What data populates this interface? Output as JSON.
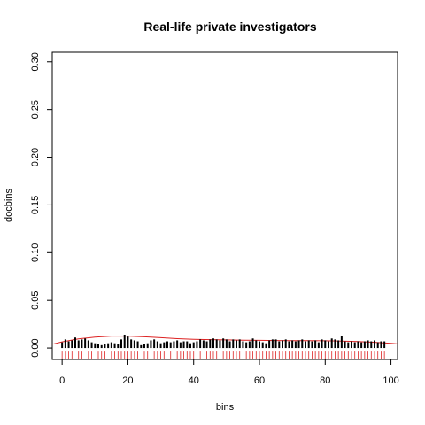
{
  "chart_data": {
    "type": "bar",
    "title": "Real-life private investigators",
    "xlabel": "bins",
    "ylabel": "docbins",
    "xlim": [
      -3,
      102
    ],
    "ylim": [
      -0.012,
      0.31
    ],
    "xticks": [
      "0",
      "20",
      "40",
      "60",
      "80",
      "100"
    ],
    "xtick_values": [
      0,
      20,
      40,
      60,
      80,
      100
    ],
    "yticks": [
      "0.00",
      "0.05",
      "0.10",
      "0.15",
      "0.20",
      "0.25",
      "0.30"
    ],
    "ytick_values": [
      0,
      0.05,
      0.1,
      0.15,
      0.2,
      0.25,
      0.3
    ],
    "bar_color": "#000000",
    "curve_color": "#dd2222",
    "rug_color": "#dd2222",
    "x": [
      0,
      1,
      2,
      3,
      4,
      5,
      6,
      7,
      8,
      9,
      10,
      11,
      12,
      13,
      14,
      15,
      16,
      17,
      18,
      19,
      20,
      21,
      22,
      23,
      24,
      25,
      26,
      27,
      28,
      29,
      30,
      31,
      32,
      33,
      34,
      35,
      36,
      37,
      38,
      39,
      40,
      41,
      42,
      43,
      44,
      45,
      46,
      47,
      48,
      49,
      50,
      51,
      52,
      53,
      54,
      55,
      56,
      57,
      58,
      59,
      60,
      61,
      62,
      63,
      64,
      65,
      66,
      67,
      68,
      69,
      70,
      71,
      72,
      73,
      74,
      75,
      76,
      77,
      78,
      79,
      80,
      81,
      82,
      83,
      84,
      85,
      86,
      87,
      88,
      89,
      90,
      91,
      92,
      93,
      94,
      95,
      96,
      97,
      98
    ],
    "values": [
      0.006,
      0.009,
      0.007,
      0.008,
      0.011,
      0.008,
      0.009,
      0.01,
      0.008,
      0.006,
      0.005,
      0.004,
      0.003,
      0.004,
      0.005,
      0.006,
      0.005,
      0.004,
      0.009,
      0.014,
      0.012,
      0.009,
      0.008,
      0.007,
      0.003,
      0.004,
      0.005,
      0.008,
      0.009,
      0.007,
      0.005,
      0.006,
      0.007,
      0.006,
      0.007,
      0.008,
      0.006,
      0.007,
      0.007,
      0.005,
      0.006,
      0.007,
      0.009,
      0.008,
      0.007,
      0.009,
      0.01,
      0.009,
      0.008,
      0.01,
      0.009,
      0.007,
      0.009,
      0.008,
      0.009,
      0.007,
      0.006,
      0.007,
      0.01,
      0.008,
      0.007,
      0.006,
      0.005,
      0.008,
      0.009,
      0.009,
      0.007,
      0.008,
      0.009,
      0.007,
      0.008,
      0.007,
      0.008,
      0.009,
      0.007,
      0.008,
      0.007,
      0.008,
      0.006,
      0.009,
      0.008,
      0.007,
      0.01,
      0.009,
      0.008,
      0.013,
      0.007,
      0.006,
      0.007,
      0.006,
      0.007,
      0.006,
      0.007,
      0.008,
      0.007,
      0.008,
      0.006,
      0.007,
      0.007
    ],
    "curve": {
      "x": [
        -5,
        0,
        5,
        10,
        15,
        20,
        25,
        30,
        35,
        40,
        45,
        50,
        55,
        60,
        65,
        70,
        75,
        80,
        85,
        90,
        95,
        100,
        103
      ],
      "y": [
        0.004,
        0.0065,
        0.0095,
        0.0115,
        0.0125,
        0.0125,
        0.0118,
        0.0108,
        0.0098,
        0.0092,
        0.0088,
        0.0085,
        0.0082,
        0.008,
        0.0079,
        0.0078,
        0.0077,
        0.0076,
        0.0073,
        0.0068,
        0.006,
        0.005,
        0.0043
      ]
    },
    "rug_x": [
      0,
      1,
      2,
      3,
      5,
      6,
      8,
      9,
      11,
      12,
      13,
      15,
      16,
      17,
      18,
      19,
      20,
      21,
      22,
      23,
      25,
      26,
      28,
      29,
      30,
      31,
      33,
      34,
      35,
      36,
      37,
      38,
      39,
      40,
      41,
      42,
      44,
      45,
      46,
      47,
      48,
      49,
      50,
      51,
      52,
      53,
      54,
      55,
      56,
      57,
      58,
      59,
      60,
      61,
      62,
      63,
      64,
      65,
      66,
      67,
      68,
      69,
      70,
      71,
      72,
      73,
      74,
      75,
      76,
      77,
      78,
      79,
      80,
      81,
      82,
      83,
      84,
      85,
      86,
      87,
      88,
      89,
      90,
      91,
      92,
      93,
      94,
      95,
      96,
      97,
      98
    ]
  }
}
